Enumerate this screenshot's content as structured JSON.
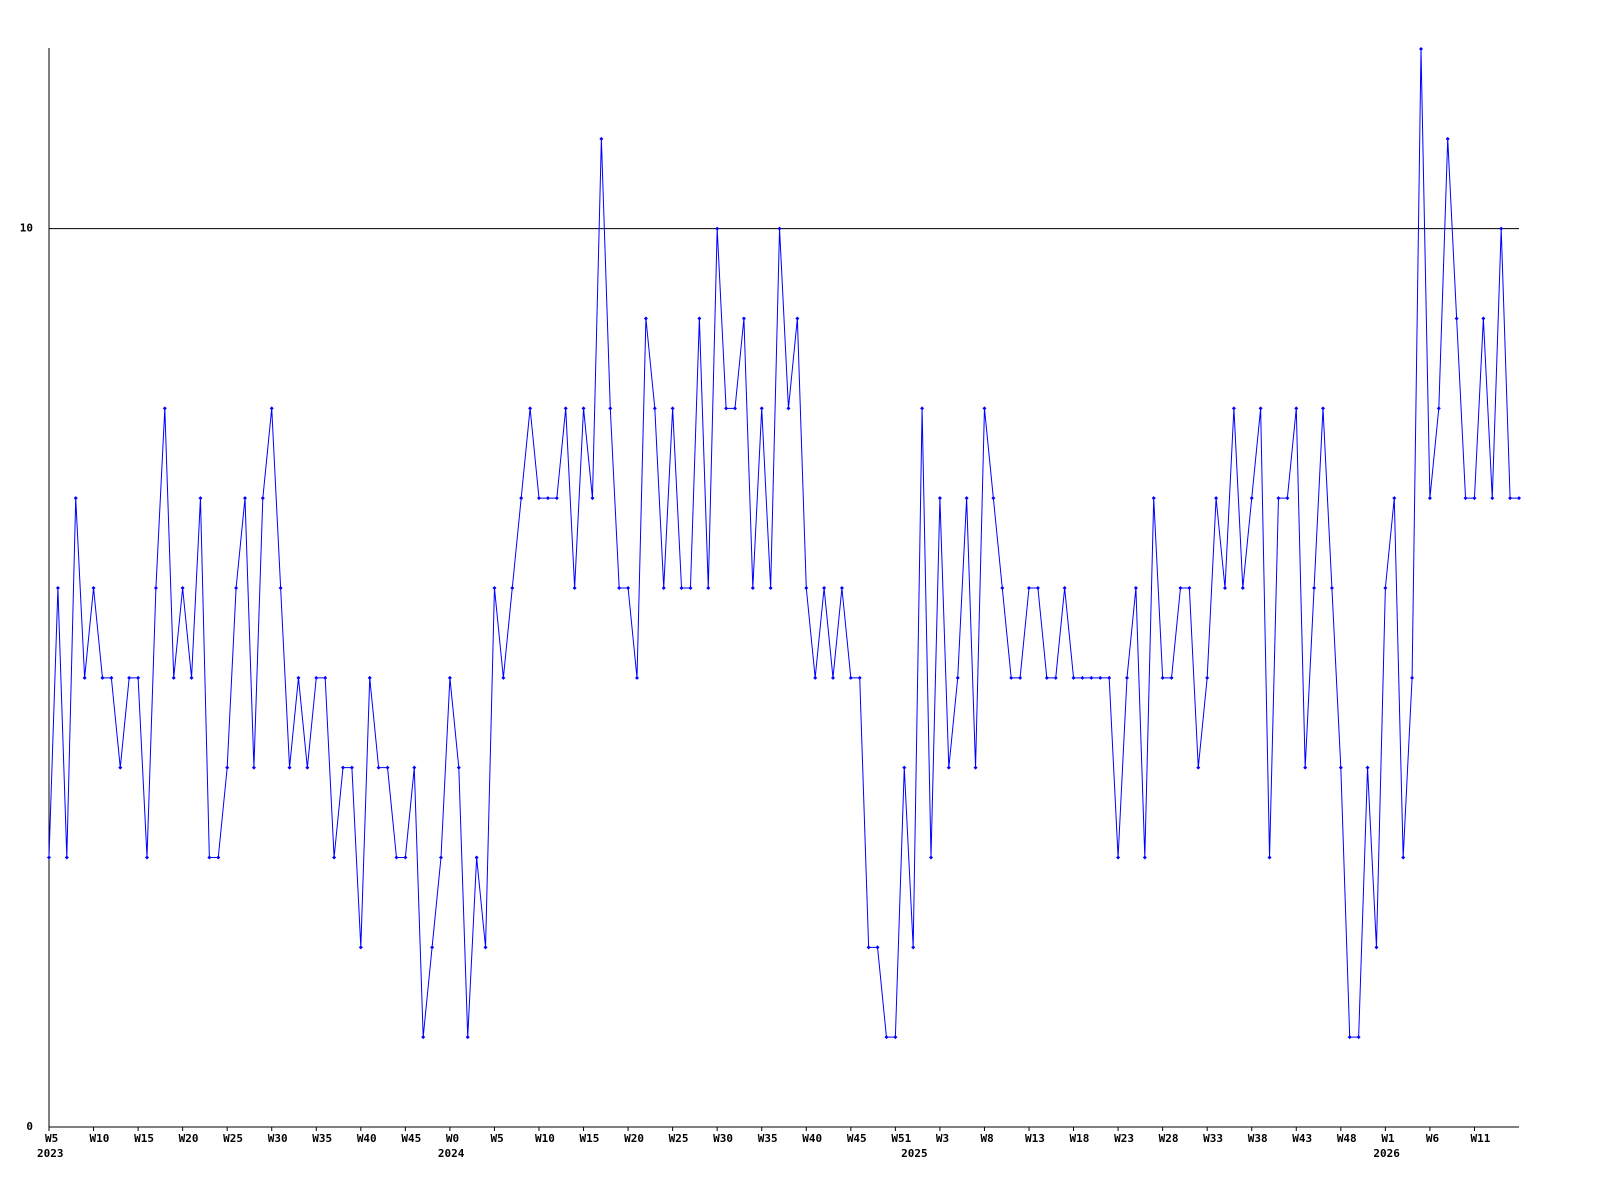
{
  "chart_data": {
    "type": "line",
    "categories": [
      "W5",
      null,
      null,
      null,
      null,
      "W10",
      null,
      null,
      null,
      null,
      "W15",
      null,
      null,
      null,
      null,
      "W20",
      null,
      null,
      null,
      null,
      "W25",
      null,
      null,
      null,
      null,
      "W30",
      null,
      null,
      null,
      null,
      "W35",
      null,
      null,
      null,
      null,
      "W40",
      null,
      null,
      null,
      null,
      "W45",
      null,
      null,
      null,
      null,
      "W0",
      null,
      null,
      null,
      null,
      "W5",
      null,
      null,
      null,
      null,
      "W10",
      null,
      null,
      null,
      null,
      "W15",
      null,
      null,
      null,
      null,
      "W20",
      null,
      null,
      null,
      null,
      "W25",
      null,
      null,
      null,
      null,
      "W30",
      null,
      null,
      null,
      null,
      "W35",
      null,
      null,
      null,
      null,
      "W40",
      null,
      null,
      null,
      null,
      "W45",
      null,
      null,
      null,
      null,
      "W51",
      null,
      null,
      null,
      null,
      "W3",
      null,
      null,
      null,
      null,
      "W8",
      null,
      null,
      null,
      null,
      "W13",
      null,
      null,
      null,
      null,
      "W18",
      null,
      null,
      null,
      null,
      "W23",
      null,
      null,
      null,
      null,
      "W28",
      null,
      null,
      null,
      null,
      "W33",
      null,
      null,
      null,
      null,
      "W38",
      null,
      null,
      null,
      null,
      "W43",
      null,
      null,
      null,
      null,
      "W48",
      null,
      null,
      null,
      null,
      "W1",
      null,
      null,
      null,
      null,
      "W6",
      null,
      null,
      null,
      null,
      "W11",
      null,
      null,
      null,
      null,
      null
    ],
    "years": [
      "2023",
      null,
      null,
      null,
      null,
      null,
      null,
      null,
      null,
      null,
      null,
      null,
      null,
      null,
      null,
      null,
      null,
      null,
      null,
      null,
      null,
      null,
      null,
      null,
      null,
      null,
      null,
      null,
      null,
      null,
      null,
      null,
      null,
      null,
      null,
      null,
      null,
      null,
      null,
      null,
      null,
      null,
      null,
      null,
      null,
      "2024",
      null,
      null,
      null,
      null,
      null,
      null,
      null,
      null,
      null,
      null,
      null,
      null,
      null,
      null,
      null,
      null,
      null,
      null,
      null,
      null,
      null,
      null,
      null,
      null,
      null,
      null,
      null,
      null,
      null,
      null,
      null,
      null,
      null,
      null,
      null,
      null,
      null,
      null,
      null,
      null,
      null,
      null,
      null,
      null,
      null,
      null,
      null,
      null,
      null,
      null,
      null,
      "2025",
      null,
      null,
      null,
      null,
      null,
      null,
      null,
      null,
      null,
      null,
      null,
      null,
      null,
      null,
      null,
      null,
      null,
      null,
      null,
      null,
      null,
      null,
      null,
      null,
      null,
      null,
      null,
      null,
      null,
      null,
      null,
      null,
      null,
      null,
      null,
      null,
      null,
      null,
      null,
      null,
      null,
      null,
      null,
      null,
      null,
      null,
      null,
      null,
      null,
      null,
      null,
      null,
      "2026",
      null,
      null,
      null,
      null,
      null,
      null,
      null,
      null,
      null,
      null,
      null,
      null,
      null,
      null,
      null
    ],
    "series": [
      {
        "color": "#0000ff",
        "values": [
          3,
          6,
          3,
          7,
          5,
          6,
          5,
          5,
          4,
          5,
          5,
          3,
          6,
          8,
          5,
          6,
          5,
          7,
          3,
          3,
          4,
          6,
          7,
          4,
          7,
          8,
          6,
          4,
          5,
          4,
          5,
          5,
          3,
          4,
          4,
          2,
          5,
          4,
          4,
          3,
          3,
          4,
          1,
          2,
          3,
          5,
          4,
          1,
          3,
          2,
          6,
          5,
          6,
          7,
          8,
          7,
          7,
          7,
          8,
          6,
          8,
          7,
          11,
          8,
          6,
          6,
          5,
          9,
          8,
          6,
          8,
          6,
          6,
          9,
          6,
          10,
          8,
          8,
          9,
          6,
          8,
          6,
          10,
          8,
          9,
          6,
          5,
          6,
          5,
          6,
          5,
          5,
          2,
          2,
          1,
          1,
          4,
          2,
          8,
          3,
          7,
          4,
          5,
          7,
          4,
          8,
          7,
          6,
          5,
          5,
          6,
          6,
          5,
          5,
          6,
          5,
          5,
          5,
          5,
          5,
          3,
          5,
          6,
          3,
          7,
          5,
          5,
          6,
          6,
          4,
          5,
          7,
          6,
          8,
          6,
          7,
          8,
          3,
          7,
          7,
          8,
          4,
          6,
          8,
          6,
          4,
          1,
          1,
          4,
          2,
          6,
          7,
          3,
          5,
          12,
          7,
          8,
          11,
          9,
          7,
          7,
          9,
          7,
          10,
          7,
          7
        ]
      }
    ],
    "ylim": [
      0,
      12
    ],
    "yticks": [
      0,
      10
    ],
    "grid": true
  }
}
